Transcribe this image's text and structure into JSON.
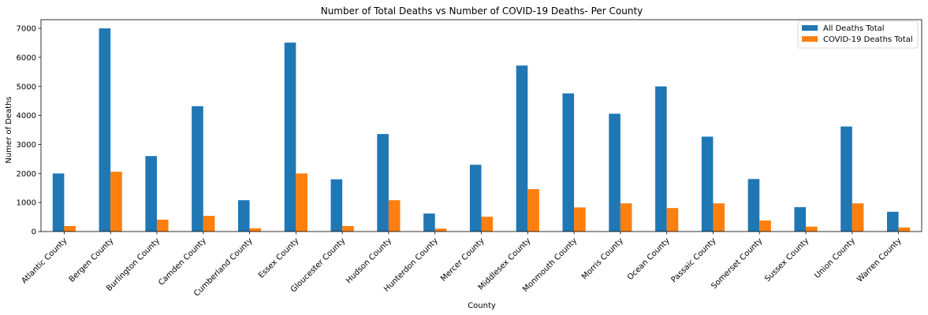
{
  "chart_data": {
    "type": "bar",
    "title": "Number of Total Deaths vs Number of COVID-19 Deaths- Per County",
    "xlabel": "County",
    "ylabel": "Numer of Deaths",
    "ylim": [
      0,
      7300
    ],
    "yticks": [
      0,
      1000,
      2000,
      3000,
      4000,
      5000,
      6000,
      7000
    ],
    "legend_position": "top-right",
    "grid": false,
    "categories": [
      "Atlantic County",
      "Bergen County",
      "Burlington County",
      "Camden County",
      "Cumberland County",
      "Essex County",
      "Gloucester County",
      "Hudson County",
      "Hunterdon County",
      "Mercer County",
      "Middlesex County",
      "Monmouth County",
      "Morris County",
      "Ocean County",
      "Passaic County",
      "Somerset County",
      "Sussex County",
      "Union County",
      "Warren County"
    ],
    "series": [
      {
        "name": "All Deaths Total",
        "color": "#1f77b4",
        "values": [
          2000,
          7000,
          2600,
          4320,
          1080,
          6510,
          1800,
          3360,
          620,
          2300,
          5720,
          4760,
          4060,
          5000,
          3270,
          1810,
          840,
          3620,
          680
        ]
      },
      {
        "name": "COVID-19 Deaths Total",
        "color": "#ff7f0e",
        "values": [
          190,
          2060,
          410,
          540,
          110,
          2000,
          190,
          1080,
          100,
          510,
          1460,
          830,
          970,
          810,
          970,
          380,
          170,
          970,
          140
        ]
      }
    ]
  }
}
